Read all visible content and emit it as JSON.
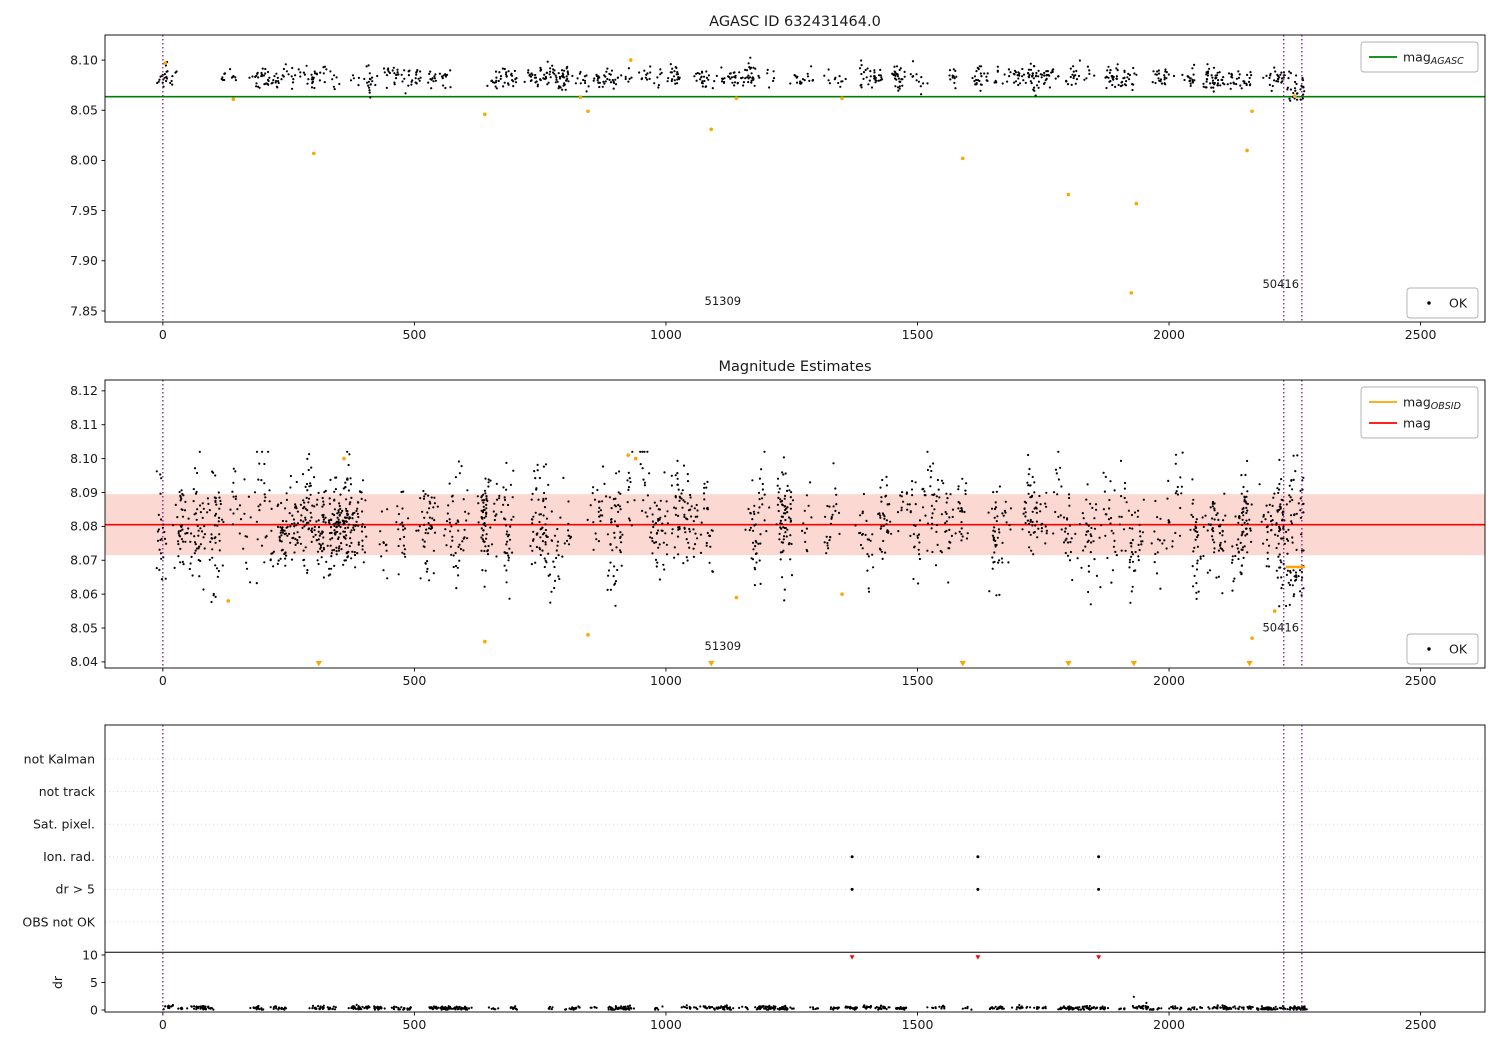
{
  "figure": {
    "title": "AGASC ID 632431464.0",
    "background": "#ffffff"
  },
  "colors": {
    "points": "#000000",
    "flagged": "#ffa500",
    "mag_agasc_line": "#008000",
    "mag_line": "#ff0000",
    "mag_band": "#fbd8d2",
    "obsid_vline": "#800080",
    "dr_flag_point": "#ff0000",
    "grid": "#cfcfcf",
    "legend_border": "#b0b0b0",
    "axes": "#000000",
    "text": "#1a1a1a"
  },
  "chart_data": [
    {
      "id": "mag-agasc-panel",
      "type": "scatter",
      "title": "AGASC ID 632431464.0",
      "xlim": [
        -115,
        2628
      ],
      "ylim": [
        7.839,
        8.125
      ],
      "xticks": [
        0,
        500,
        1000,
        1500,
        2000,
        2500
      ],
      "yticks": [
        7.85,
        7.9,
        7.95,
        8.0,
        8.05,
        8.1
      ],
      "ytick_decimals": 2,
      "hlines": [
        {
          "y": 8.0635,
          "color_key": "mag_agasc_line",
          "width": 1.6
        }
      ],
      "vlines": [
        {
          "x": 0
        },
        {
          "x": 2228
        },
        {
          "x": 2264
        }
      ],
      "series_summary": {
        "name": "OK",
        "n_clusters": 160,
        "pts_per_cluster": 6,
        "x_range": [
          -8,
          2270
        ],
        "y_mean": 8.083,
        "y_std": 0.006,
        "y_clip": [
          8.058,
          8.104
        ],
        "seed": 101,
        "extra_cluster": {
          "x_range": [
            2232,
            2270
          ],
          "n": 22,
          "y_mean": 8.068,
          "y_std": 0.005
        }
      },
      "flagged_points": [
        [
          5,
          8.097
        ],
        [
          140,
          8.061
        ],
        [
          300,
          8.007
        ],
        [
          640,
          8.046
        ],
        [
          830,
          8.063
        ],
        [
          845,
          8.049
        ],
        [
          930,
          8.1
        ],
        [
          1090,
          8.031
        ],
        [
          1140,
          8.062
        ],
        [
          1350,
          8.062
        ],
        [
          1590,
          8.002
        ],
        [
          1800,
          7.966
        ],
        [
          1925,
          7.868
        ],
        [
          1935,
          7.957
        ],
        [
          2155,
          8.01
        ],
        [
          2165,
          8.049
        ],
        [
          2250,
          8.064
        ]
      ],
      "annotations": [
        {
          "text": "51309",
          "x": 1113,
          "y": 7.856
        },
        {
          "text": "50416",
          "x": 2222,
          "y": 7.873
        }
      ],
      "legend_top": {
        "entries": [
          {
            "label": "mag",
            "sub": "AGASC",
            "marker": "line",
            "color_key": "mag_agasc_line"
          }
        ]
      },
      "legend_bottom": {
        "entries": [
          {
            "label": "OK",
            "sub": "",
            "marker": "dot",
            "color_key": "points"
          }
        ]
      }
    },
    {
      "id": "mag-estimates-panel",
      "type": "scatter",
      "title": "Magnitude Estimates",
      "xlim": [
        -115,
        2628
      ],
      "ylim": [
        8.0382,
        8.1232
      ],
      "xticks": [
        0,
        500,
        1000,
        1500,
        2000,
        2500
      ],
      "yticks": [
        8.04,
        8.05,
        8.06,
        8.07,
        8.08,
        8.09,
        8.1,
        8.11,
        8.12
      ],
      "ytick_decimals": 2,
      "band": {
        "y0": 8.0715,
        "y1": 8.0895,
        "color_key": "mag_band"
      },
      "hlines": [
        {
          "y": 8.0805,
          "color_key": "mag_line",
          "width": 1.6
        }
      ],
      "hsegments": [
        {
          "x0": 2232,
          "x1": 2270,
          "y": 8.068,
          "color_key": "flagged",
          "width": 2.5
        }
      ],
      "vlines": [
        {
          "x": 0
        },
        {
          "x": 2228
        },
        {
          "x": 2264
        }
      ],
      "series_summary": {
        "name": "OK",
        "n_clusters": 170,
        "pts_per_cluster": 12,
        "x_range": [
          -8,
          2270
        ],
        "y_mean": 8.0805,
        "y_std": 0.008,
        "y_clip": [
          8.055,
          8.102
        ],
        "seed": 202,
        "extra_cluster": {
          "x_range": [
            2232,
            2270
          ],
          "n": 30,
          "y_mean": 8.064,
          "y_std": 0.004
        }
      },
      "flagged_points": [
        [
          130,
          8.058
        ],
        [
          360,
          8.1
        ],
        [
          640,
          8.046
        ],
        [
          845,
          8.048
        ],
        [
          925,
          8.101
        ],
        [
          940,
          8.1
        ],
        [
          1140,
          8.059
        ],
        [
          1350,
          8.06
        ],
        [
          2165,
          8.047
        ],
        [
          2210,
          8.055
        ]
      ],
      "flagged_clipped_x": [
        310,
        1090,
        1590,
        1800,
        1930,
        2160
      ],
      "clip_marker_y": 8.0395,
      "annotations": [
        {
          "text": "51309",
          "x": 1113,
          "y": 8.0435
        },
        {
          "text": "50416",
          "x": 2222,
          "y": 8.049
        }
      ],
      "legend_top": {
        "entries": [
          {
            "label": "mag",
            "sub": "OBSID",
            "marker": "line",
            "color_key": "flagged"
          },
          {
            "label": "mag",
            "sub": "",
            "marker": "line",
            "color_key": "mag_line"
          }
        ]
      },
      "legend_bottom": {
        "entries": [
          {
            "label": "OK",
            "sub": "",
            "marker": "dot",
            "color_key": "points"
          }
        ]
      }
    },
    {
      "id": "flags-panel",
      "type": "scatter",
      "title": "",
      "xlim": [
        -115,
        2628
      ],
      "xticks": [
        0,
        500,
        1000,
        1500,
        2000,
        2500
      ],
      "flag_rows": [
        "not Kalman",
        "not track",
        "Sat. pixel.",
        "Ion. rad.",
        "dr > 5",
        "OBS not OK"
      ],
      "flag_points": [
        {
          "row": "Ion. rad.",
          "x": [
            1370,
            1620,
            1860
          ]
        },
        {
          "row": "dr > 5",
          "x": [
            1370,
            1620,
            1860
          ]
        }
      ],
      "dr_axis": {
        "label": "dr",
        "ticks": [
          0,
          5,
          10
        ],
        "max_line": 10.5
      },
      "dr_red_points": [
        [
          1370,
          9.6
        ],
        [
          1620,
          9.6
        ],
        [
          1860,
          9.6
        ]
      ],
      "dr_series_summary": {
        "n_clusters": 160,
        "pts_per_cluster": 6,
        "x_range": [
          -8,
          2270
        ],
        "y_mean": 0.35,
        "y_std": 0.18,
        "y_clip": [
          0.08,
          1.1
        ],
        "seed": 303,
        "outliers": [
          [
            1930,
            2.4
          ],
          [
            1955,
            1.3
          ]
        ]
      },
      "vlines": [
        {
          "x": 0
        },
        {
          "x": 2228
        },
        {
          "x": 2264
        }
      ]
    }
  ]
}
